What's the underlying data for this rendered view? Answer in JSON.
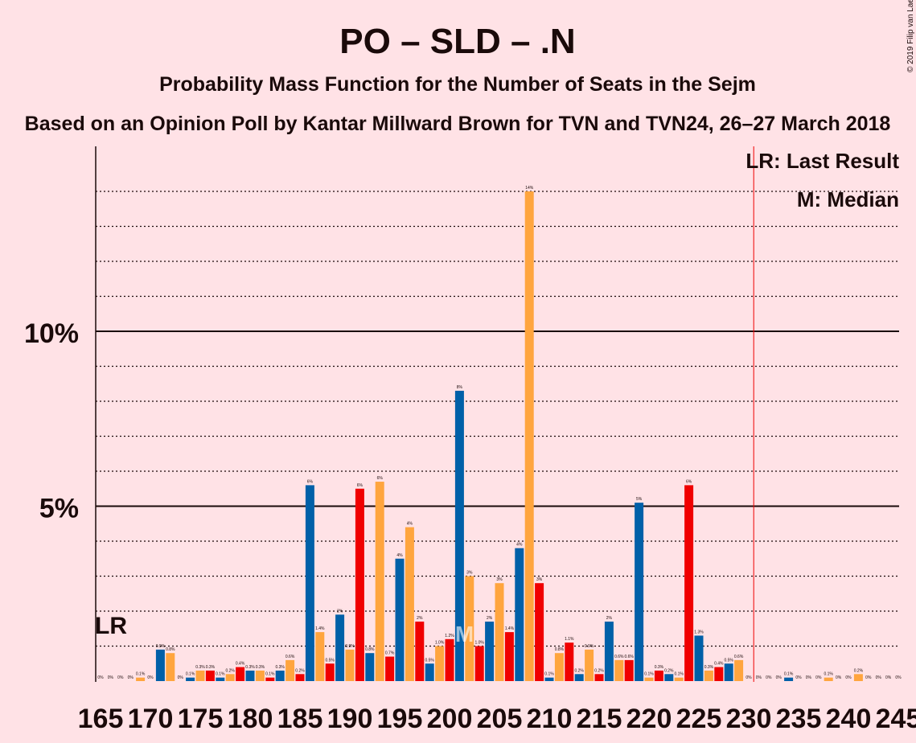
{
  "chart_data": {
    "type": "bar",
    "title": "PO – SLD – .N",
    "subtitle": "Probability Mass Function for the Number of Seats in the Sejm",
    "subtitle2": "Based on an Opinion Poll by Kantar Millward Brown for TVN and TVN24, 26–27 March 2018",
    "copyright": "© 2019 Filip van Laenen",
    "legend": {
      "lr": "LR: Last Result",
      "median": "M: Median"
    },
    "lr_label": "LR",
    "median_label": "M",
    "y_ticks": [
      {
        "value": 5,
        "label": "5%"
      },
      {
        "value": 10,
        "label": "10%"
      }
    ],
    "ylim": [
      0,
      15
    ],
    "xlim": [
      165,
      245
    ],
    "x_ticks": [
      165,
      170,
      175,
      180,
      185,
      190,
      195,
      200,
      205,
      210,
      215,
      220,
      225,
      230,
      235,
      240,
      245
    ],
    "last_result_seat": 166,
    "majority_seat": 231,
    "median_seat": 202,
    "colors": {
      "blue": "#0060A8",
      "orange": "#FFA53E",
      "red": "#F00000",
      "text": "#1a0a0a",
      "background": "#FFE2E6"
    },
    "seats": [
      165,
      166,
      167,
      168,
      169,
      170,
      171,
      172,
      173,
      174,
      175,
      176,
      177,
      178,
      179,
      180,
      181,
      182,
      183,
      184,
      185,
      186,
      187,
      188,
      189,
      190,
      191,
      192,
      193,
      194,
      195,
      196,
      197,
      198,
      199,
      200,
      201,
      202,
      203,
      204,
      205,
      206,
      207,
      208,
      209,
      210,
      211,
      212,
      213,
      214,
      215,
      216,
      217,
      218,
      219,
      220,
      221,
      222,
      223,
      224,
      225,
      226,
      227,
      228,
      229,
      230,
      231,
      232,
      233,
      234,
      235,
      236,
      237,
      238,
      239,
      240,
      241,
      242,
      243,
      244,
      245
    ],
    "values": [
      0,
      0,
      0,
      0,
      0.1,
      0,
      0.9,
      0.8,
      0,
      0.1,
      0.3,
      0.3,
      0.1,
      0.2,
      0.4,
      0.3,
      0.3,
      0.1,
      0.3,
      0.6,
      0.2,
      5.6,
      1.4,
      0.5,
      1.9,
      0.9,
      5.5,
      0.8,
      5.7,
      0.7,
      3.5,
      4.4,
      1.7,
      0.5,
      1.0,
      1.2,
      8.3,
      3.0,
      1.0,
      1.7,
      2.8,
      1.4,
      3.8,
      14.0,
      2.8,
      0.1,
      0.8,
      1.1,
      0.2,
      0.9,
      0.2,
      1.7,
      0.6,
      0.6,
      5.1,
      0.1,
      0.3,
      0.2,
      0.1,
      5.6,
      1.3,
      0.3,
      0.4,
      0.5,
      0.6,
      0,
      0,
      0,
      0,
      0.1,
      0,
      0,
      0,
      0.1,
      0,
      0,
      0.2,
      0,
      0,
      0,
      0
    ],
    "labels": [
      "0%",
      "0%",
      "0%",
      "0%",
      "0.1%",
      "0%",
      "0.9%",
      "0.8%",
      "0%",
      "0.1%",
      "0.3%",
      "0.3%",
      "0.1%",
      "0.2%",
      "0.4%",
      "0.3%",
      "0.3%",
      "0.1%",
      "0.3%",
      "0.6%",
      "0.2%",
      "6%",
      "1.4%",
      "0.5%",
      "2%",
      "0.9%",
      "6%",
      "0.8%",
      "6%",
      "0.7%",
      "4%",
      "4%",
      "2%",
      "0.5%",
      "1.0%",
      "1.2%",
      "8%",
      "3%",
      "1.0%",
      "2%",
      "3%",
      "1.4%",
      "4%",
      "14%",
      "3%",
      "0.1%",
      "0.8%",
      "1.1%",
      "0.2%",
      "0.9%",
      "0.2%",
      "2%",
      "0.6%",
      "0.6%",
      "5%",
      "0.1%",
      "0.3%",
      "0.2%",
      "0.1%",
      "6%",
      "1.3%",
      "0.3%",
      "0.4%",
      "0.5%",
      "0.6%",
      "0%",
      "0%",
      "0%",
      "0%",
      "0.1%",
      "0%",
      "0%",
      "0%",
      "0.1%",
      "0%",
      "0%",
      "0.2%",
      "0%",
      "0%",
      "0%",
      "0%"
    ]
  }
}
